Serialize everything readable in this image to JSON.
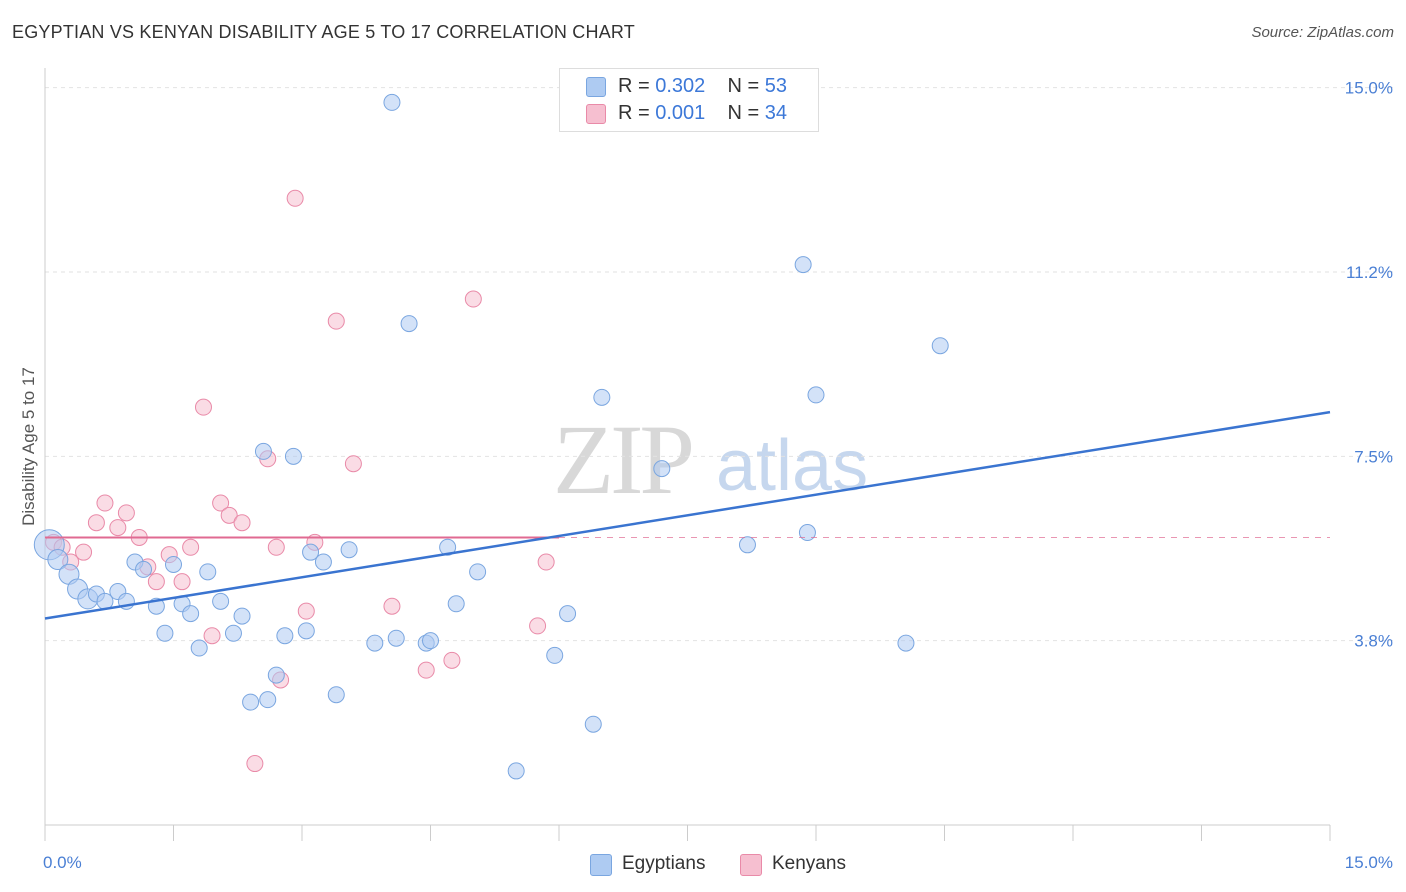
{
  "header": {
    "title": "EGYPTIAN VS KENYAN DISABILITY AGE 5 TO 17 CORRELATION CHART",
    "source": "Source: ZipAtlas.com"
  },
  "watermark": {
    "zip": "ZIP",
    "atlas": "atlas"
  },
  "legend": {
    "rows": [
      {
        "r_label": "R = ",
        "r_value": "0.302",
        "n_label": "N = ",
        "n_value": "53"
      },
      {
        "r_label": "R = ",
        "r_value": "0.001",
        "n_label": "N = ",
        "n_value": "34"
      }
    ]
  },
  "bottom_legend": {
    "egyptians": "Egyptians",
    "kenyans": "Kenyans"
  },
  "colors": {
    "blue_fill": "#aecbf2",
    "blue_stroke": "#7aa6e0",
    "blue_line": "#3a74d0",
    "pink_fill": "#f6bfd0",
    "pink_stroke": "#e98aa8",
    "pink_line": "#e06a92",
    "tick_text": "#4a7fd4",
    "grid": "#e2e2e2"
  },
  "chart_data": {
    "type": "scatter",
    "title": "EGYPTIAN VS KENYAN DISABILITY AGE 5 TO 17 CORRELATION CHART",
    "ylabel": "Disability Age 5 to 17",
    "xlabel": "",
    "xlim": [
      0,
      15
    ],
    "ylim": [
      0,
      15.4
    ],
    "x_tick_labels": [
      {
        "value": 0,
        "label": "0.0%"
      },
      {
        "value": 15,
        "label": "15.0%"
      }
    ],
    "y_tick_labels": [
      {
        "value": 3.75,
        "label": "3.8%"
      },
      {
        "value": 7.5,
        "label": "7.5%"
      },
      {
        "value": 11.25,
        "label": "11.2%"
      },
      {
        "value": 15,
        "label": "15.0%"
      }
    ],
    "grid": true,
    "legend_position": "top-center",
    "series": [
      {
        "name": "Egyptians",
        "color": "#aecbf2",
        "R": 0.302,
        "N": 53,
        "trendline": {
          "x": [
            0,
            15
          ],
          "y": [
            4.2,
            8.4
          ]
        },
        "points": [
          [
            0.05,
            5.7,
            3
          ],
          [
            0.15,
            5.4,
            2
          ],
          [
            0.28,
            5.1,
            2
          ],
          [
            0.38,
            4.8,
            2
          ],
          [
            0.5,
            4.6,
            2
          ],
          [
            0.6,
            4.7,
            1
          ],
          [
            0.7,
            4.55,
            1
          ],
          [
            0.85,
            4.75,
            1
          ],
          [
            0.95,
            4.55,
            1
          ],
          [
            1.05,
            5.35,
            1
          ],
          [
            1.15,
            5.2,
            1
          ],
          [
            1.3,
            4.45,
            1
          ],
          [
            1.4,
            3.9,
            1
          ],
          [
            1.5,
            5.3,
            1
          ],
          [
            1.6,
            4.5,
            1
          ],
          [
            1.7,
            4.3,
            1
          ],
          [
            1.8,
            3.6,
            1
          ],
          [
            1.9,
            5.15,
            1
          ],
          [
            2.05,
            4.55,
            1
          ],
          [
            2.2,
            3.9,
            1
          ],
          [
            2.3,
            4.25,
            1
          ],
          [
            2.4,
            2.5,
            1
          ],
          [
            2.55,
            7.6,
            1
          ],
          [
            2.6,
            2.55,
            1
          ],
          [
            2.7,
            3.05,
            1
          ],
          [
            2.8,
            3.85,
            1
          ],
          [
            2.9,
            7.5,
            1
          ],
          [
            3.05,
            3.95,
            1
          ],
          [
            3.1,
            5.55,
            1
          ],
          [
            3.25,
            5.35,
            1
          ],
          [
            3.4,
            2.65,
            1
          ],
          [
            3.55,
            5.6,
            1
          ],
          [
            3.85,
            3.7,
            1
          ],
          [
            4.05,
            14.7,
            1
          ],
          [
            4.1,
            3.8,
            1
          ],
          [
            4.25,
            10.2,
            1
          ],
          [
            4.45,
            3.7,
            1
          ],
          [
            4.5,
            3.75,
            1
          ],
          [
            4.7,
            5.65,
            1
          ],
          [
            4.8,
            4.5,
            1
          ],
          [
            5.05,
            5.15,
            1
          ],
          [
            5.5,
            1.1,
            1
          ],
          [
            5.95,
            3.45,
            1
          ],
          [
            6.1,
            4.3,
            1
          ],
          [
            6.4,
            2.05,
            1
          ],
          [
            6.5,
            8.7,
            1
          ],
          [
            7.2,
            7.25,
            1
          ],
          [
            8.2,
            5.7,
            1
          ],
          [
            8.85,
            11.4,
            1
          ],
          [
            8.9,
            5.95,
            1
          ],
          [
            9.0,
            8.75,
            1
          ],
          [
            10.05,
            3.7,
            1
          ],
          [
            10.45,
            9.75,
            1
          ]
        ]
      },
      {
        "name": "Kenyans",
        "color": "#f6bfd0",
        "R": 0.001,
        "N": 34,
        "trendline": {
          "x": [
            0,
            6.0
          ],
          "y": [
            5.85,
            5.85
          ]
        },
        "trendline_dashed_extension": {
          "x": [
            6.0,
            15
          ],
          "y": [
            5.85,
            5.85
          ]
        },
        "points": [
          [
            0.1,
            5.75,
            1
          ],
          [
            0.2,
            5.65,
            1
          ],
          [
            0.3,
            5.35,
            1
          ],
          [
            0.45,
            5.55,
            1
          ],
          [
            0.6,
            6.15,
            1
          ],
          [
            0.7,
            6.55,
            1
          ],
          [
            0.85,
            6.05,
            1
          ],
          [
            0.95,
            6.35,
            1
          ],
          [
            1.1,
            5.85,
            1
          ],
          [
            1.2,
            5.25,
            1
          ],
          [
            1.3,
            4.95,
            1
          ],
          [
            1.45,
            5.5,
            1
          ],
          [
            1.6,
            4.95,
            1
          ],
          [
            1.7,
            5.65,
            1
          ],
          [
            1.85,
            8.5,
            1
          ],
          [
            1.95,
            3.85,
            1
          ],
          [
            2.05,
            6.55,
            1
          ],
          [
            2.15,
            6.3,
            1
          ],
          [
            2.3,
            6.15,
            1
          ],
          [
            2.45,
            1.25,
            1
          ],
          [
            2.6,
            7.45,
            1
          ],
          [
            2.7,
            5.65,
            1
          ],
          [
            2.75,
            2.95,
            1
          ],
          [
            2.92,
            12.75,
            1
          ],
          [
            3.05,
            4.35,
            1
          ],
          [
            3.15,
            5.75,
            1
          ],
          [
            3.4,
            10.25,
            1
          ],
          [
            3.6,
            7.35,
            1
          ],
          [
            4.05,
            4.45,
            1
          ],
          [
            4.45,
            3.15,
            1
          ],
          [
            4.75,
            3.35,
            1
          ],
          [
            5.0,
            10.7,
            1
          ],
          [
            5.75,
            4.05,
            1
          ],
          [
            5.85,
            5.35,
            1
          ]
        ]
      }
    ]
  }
}
